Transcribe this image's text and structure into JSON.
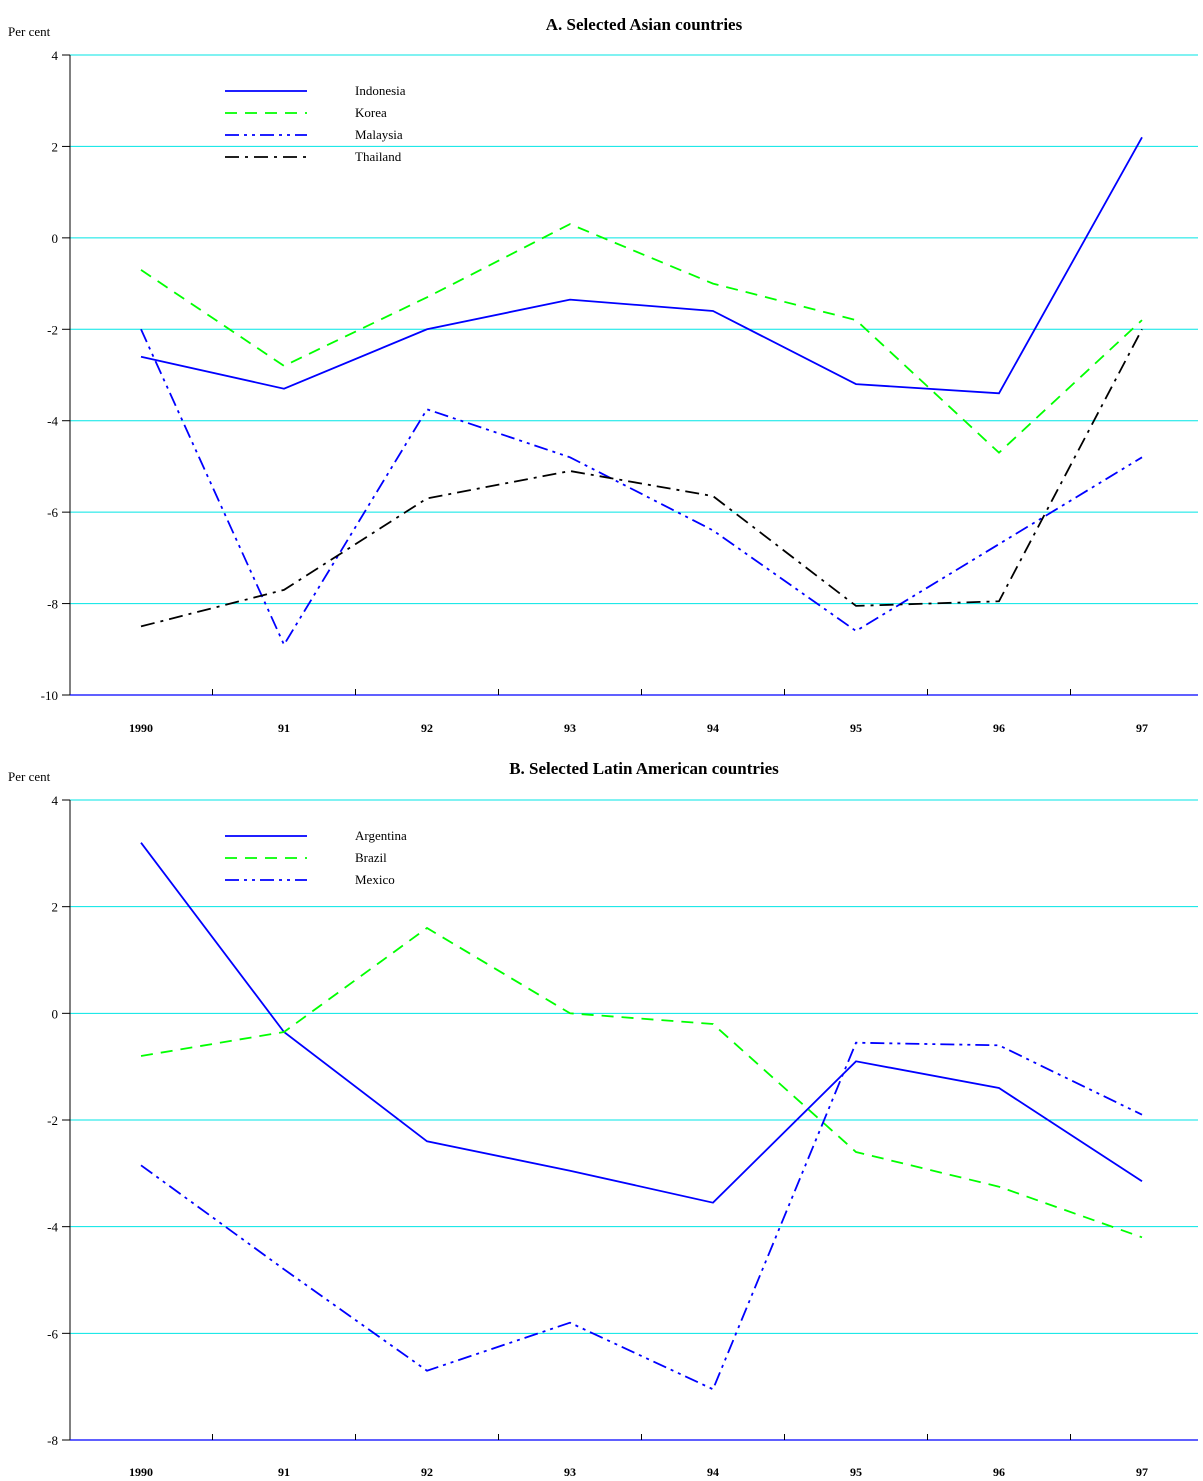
{
  "chart_data": [
    {
      "type": "line",
      "title": "A. Selected Asian countries",
      "ylabel": "Per cent",
      "xlabel": "",
      "categories": [
        "1990",
        "91",
        "92",
        "93",
        "94",
        "95",
        "96",
        "97"
      ],
      "ylim": [
        -10,
        4
      ],
      "yticks": [
        4,
        2,
        0,
        -2,
        -4,
        -6,
        -8,
        -10
      ],
      "ytick_labels": [
        "4",
        "2",
        "0",
        "-2",
        "-4",
        "-6",
        "-8",
        "-10"
      ],
      "grid": true,
      "legend_position": "top-left",
      "series": [
        {
          "name": "Indonesia",
          "values": [
            -2.6,
            -3.3,
            -2.0,
            -1.35,
            -1.6,
            -3.2,
            -3.4,
            2.2
          ],
          "color": "#0000ff",
          "dash": "solid"
        },
        {
          "name": "Korea",
          "values": [
            -0.7,
            -2.8,
            -1.3,
            0.3,
            -1.0,
            -1.8,
            -4.7,
            -1.8
          ],
          "color": "#00ff00",
          "dash": "dashed"
        },
        {
          "name": "Malaysia",
          "values": [
            -2.0,
            -8.9,
            -3.75,
            -4.8,
            -6.4,
            -8.6,
            -6.7,
            -4.8
          ],
          "color": "#0000ff",
          "dash": "dash-dot-dot"
        },
        {
          "name": "Thailand",
          "values": [
            -8.5,
            -7.7,
            -5.7,
            -5.1,
            -5.65,
            -8.05,
            -7.95,
            -2.0
          ],
          "color": "#000000",
          "dash": "dash-dot"
        }
      ]
    },
    {
      "type": "line",
      "title": "B. Selected Latin American countries",
      "ylabel": "Per cent",
      "xlabel": "",
      "categories": [
        "1990",
        "91",
        "92",
        "93",
        "94",
        "95",
        "96",
        "97"
      ],
      "ylim": [
        -8,
        4
      ],
      "yticks": [
        4,
        2,
        0,
        -2,
        -4,
        -6,
        -8
      ],
      "ytick_labels": [
        "4",
        "2",
        "0",
        "-2",
        "-4",
        "-6",
        "-8"
      ],
      "grid": true,
      "legend_position": "top-left",
      "series": [
        {
          "name": "Argentina",
          "values": [
            3.2,
            -0.35,
            -2.4,
            -2.95,
            -3.55,
            -0.9,
            -1.4,
            -3.15
          ],
          "color": "#0000ff",
          "dash": "solid"
        },
        {
          "name": "Brazil",
          "values": [
            -0.8,
            -0.35,
            1.6,
            0.0,
            -0.2,
            -2.6,
            -3.25,
            -4.2
          ],
          "color": "#00ff00",
          "dash": "dashed"
        },
        {
          "name": "Mexico",
          "values": [
            -2.85,
            -4.8,
            -6.7,
            -5.8,
            -7.05,
            -0.55,
            -0.6,
            -1.9
          ],
          "color": "#0000ff",
          "dash": "dash-dot-dot"
        }
      ]
    }
  ]
}
